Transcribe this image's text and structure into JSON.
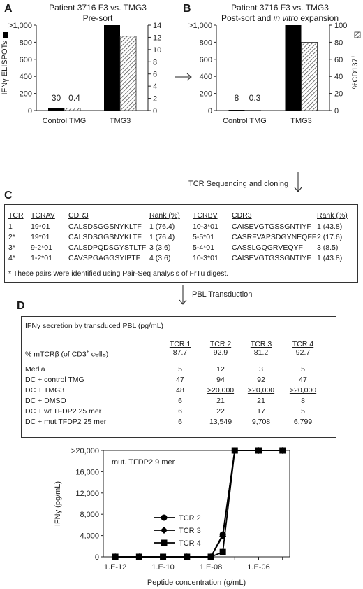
{
  "panelA": {
    "letter": "A",
    "title_line1": "Patient 3716 F3 vs. TMG3",
    "title_line2": "Pre-sort",
    "ylabel_left": "IFNγ ELISPOTs",
    "ylabel_right": "",
    "left_ticks": [
      "0",
      "200",
      "400",
      "600",
      "800",
      ">1,000"
    ],
    "right_ticks": [
      "0",
      "2",
      "4",
      "6",
      "8",
      "10",
      "12",
      "14"
    ]
  },
  "panelB": {
    "letter": "B",
    "title_line1": "Patient 3716 F3 vs. TMG3",
    "title_line2": "Post-sort and ",
    "title_italic": "in vitro",
    "title_line2_end": " expansion",
    "ylabel_right": "%CD137",
    "ylabel_sup": "+",
    "left_ticks": [
      "0",
      "200",
      "400",
      "600",
      "800",
      ">1,000"
    ],
    "right_ticks": [
      "0",
      "20",
      "40",
      "60",
      "80",
      "100"
    ]
  },
  "chart_data": [
    {
      "type": "bar",
      "panel": "A",
      "categories": [
        "Control TMG",
        "TMG3"
      ],
      "series": [
        {
          "name": "IFNγ ELISPOTs",
          "axis": "left",
          "values": [
            30,
            1000
          ]
        },
        {
          "name": "%CD137+",
          "axis": "right",
          "values": [
            0.4,
            12.2
          ]
        }
      ],
      "data_labels": [
        "30",
        "0.4"
      ],
      "ylim_left": [
        0,
        1000
      ],
      "ylim_right": [
        0,
        14
      ]
    },
    {
      "type": "bar",
      "panel": "B",
      "categories": [
        "Control TMG",
        "TMG3"
      ],
      "series": [
        {
          "name": "IFNγ ELISPOTs",
          "axis": "left",
          "values": [
            8,
            1000
          ]
        },
        {
          "name": "%CD137+",
          "axis": "right",
          "values": [
            0.3,
            80
          ]
        }
      ],
      "data_labels": [
        "8",
        "0.3"
      ],
      "ylim_left": [
        0,
        1000
      ],
      "ylim_right": [
        0,
        100
      ]
    },
    {
      "type": "line",
      "panel": "D",
      "title": "mut. TFDP2 9 mer",
      "xlabel": "Peptide concentration (g/mL)",
      "ylabel": "IFNγ (pg/mL)",
      "x_exponents": [
        -12,
        -11,
        -10,
        -9,
        -8,
        -7.5,
        -7,
        -6,
        -5
      ],
      "x_tick_labels": [
        "1.E-12",
        "1.E-10",
        "1.E-08",
        "1.E-06"
      ],
      "x_tick_exponents": [
        -12,
        -10,
        -8,
        -6
      ],
      "y_tick_labels": [
        "0",
        "4,000",
        "8,000",
        "12,000",
        "16,000",
        ">20,000"
      ],
      "ylim": [
        0,
        20000
      ],
      "series": [
        {
          "name": "TCR 2",
          "marker": "circle",
          "values": [
            0,
            0,
            0,
            0,
            0,
            4200,
            20000,
            20000,
            20000
          ]
        },
        {
          "name": "TCR 3",
          "marker": "diamond",
          "values": [
            0,
            0,
            0,
            0,
            0,
            3900,
            20000,
            20000,
            20000
          ]
        },
        {
          "name": "TCR 4",
          "marker": "square",
          "values": [
            0,
            0,
            0,
            0,
            0,
            900,
            20000,
            20000,
            20000
          ]
        }
      ]
    }
  ],
  "flow": {
    "seq_label": "TCR Sequencing and cloning",
    "pbl_label": "PBL Transduction"
  },
  "panelC": {
    "letter": "C",
    "headers": [
      "TCR",
      "TCRAV",
      "CDR3",
      "Rank (%)",
      "TCRBV",
      "CDR3",
      "Rank (%)"
    ],
    "rows": [
      [
        "1",
        "19*01",
        "CALSDSGGSNYKLTF",
        "1 (76.4)",
        "10-3*01",
        "CAISEVGTGSSGNTIYF",
        "1 (43.8)"
      ],
      [
        "2*",
        "19*01",
        "CALSDSGGSNYKLTF",
        "1 (76.4)",
        "5-5*01",
        "CASRFVAPSDGYNEQFF",
        "2 (17.6)"
      ],
      [
        "3*",
        "9-2*01",
        "CALSDPQDSGYSTLTF",
        "3 (3.6)",
        "5-4*01",
        "CASSLGQGRVEQYF",
        "3 (8.5)"
      ],
      [
        "4*",
        "1-2*01",
        "CAVSPGAGGSYIPTF",
        "4 (3.6)",
        "10-3*01",
        "CAISEVGTGSSGNTIYF",
        "1 (43.8)"
      ]
    ],
    "footnote": "* These pairs were identified using Pair-Seq analysis of FrTu digest."
  },
  "panelD": {
    "letter": "D",
    "table_title": "IFNγ secretion by transduced PBL (pg/mL)",
    "col_headers": [
      "TCR 1",
      "TCR 2",
      "TCR 3",
      "TCR 4"
    ],
    "mtcr_label": "% mTCRβ (of CD3",
    "mtcr_sup": "+",
    "mtcr_end": " cells)",
    "mtcr_values": [
      "87.7",
      "92.9",
      "81.2",
      "92.7"
    ],
    "rows": [
      {
        "label": "Media",
        "values": [
          "5",
          "12",
          "3",
          "5"
        ],
        "u": [
          false,
          false,
          false,
          false
        ]
      },
      {
        "label": "DC + control TMG",
        "values": [
          "47",
          "94",
          "92",
          "47"
        ],
        "u": [
          false,
          false,
          false,
          false
        ]
      },
      {
        "label": "DC + TMG3",
        "values": [
          "48",
          ">20,000",
          ">20,000",
          ">20,000"
        ],
        "u": [
          false,
          true,
          true,
          true
        ]
      },
      {
        "label": "DC + DMSO",
        "values": [
          "6",
          "21",
          "21",
          "8"
        ],
        "u": [
          false,
          false,
          false,
          false
        ]
      },
      {
        "label": "DC + wt TFDP2 25 mer",
        "values": [
          "6",
          "22",
          "17",
          "5"
        ],
        "u": [
          false,
          false,
          false,
          false
        ]
      },
      {
        "label": "DC + mut TFDP2 25 mer",
        "values": [
          "6",
          "13,549",
          "9,708",
          "6,799"
        ],
        "u": [
          false,
          true,
          true,
          true
        ]
      }
    ]
  }
}
